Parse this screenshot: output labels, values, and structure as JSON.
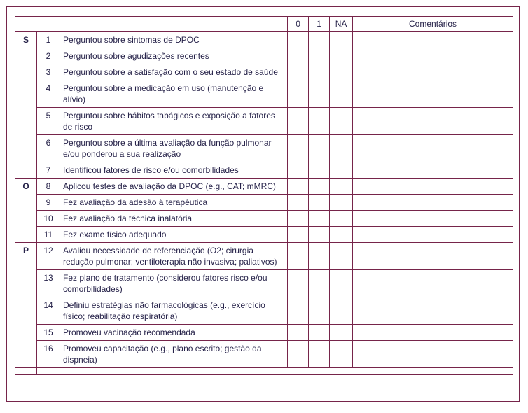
{
  "colors": {
    "border": "#76244a",
    "section_shading": "#e0cdd9",
    "text": "#262249",
    "background": "#ffffff"
  },
  "header": {
    "score0": "0",
    "score1": "1",
    "na": "NA",
    "comments": "Comentários"
  },
  "sections": [
    {
      "letter": "S",
      "shaded": true,
      "rows": [
        {
          "num": "1",
          "text": "Perguntou sobre sintomas de DPOC"
        },
        {
          "num": "2",
          "text": "Perguntou sobre agudizações recentes"
        },
        {
          "num": "3",
          "text": "Perguntou sobre a satisfação com o seu estado de saúde"
        },
        {
          "num": "4",
          "text": "Perguntou sobre a medicação em uso (manutenção e alívio)"
        },
        {
          "num": "5",
          "text": "Perguntou sobre hábitos tabágicos e exposição a fatores de risco"
        },
        {
          "num": "6",
          "text": "Perguntou sobre a última avaliação da função pulmonar e/ou ponderou a sua realização"
        },
        {
          "num": "7",
          "text": "Identificou fatores de risco e/ou comorbilidades"
        }
      ]
    },
    {
      "letter": "O",
      "shaded": false,
      "rows": [
        {
          "num": "8",
          "text": "Aplicou testes de avaliação da DPOC (e.g., CAT; mMRC)"
        },
        {
          "num": "9",
          "text": "Fez avaliação da adesão à terapêutica"
        },
        {
          "num": "10",
          "text": "Fez avaliação da técnica inalatória"
        },
        {
          "num": "11",
          "text": "Fez exame físico adequado"
        }
      ]
    },
    {
      "letter": "P",
      "shaded": true,
      "rows": [
        {
          "num": "12",
          "text": "Avaliou necessidade de referenciação (O2; cirurgia redução pulmonar; ventiloterapia não invasiva; paliativos)"
        },
        {
          "num": "13",
          "text": "Fez plano de tratamento (considerou fatores risco e/ou comorbilidades)"
        },
        {
          "num": "14",
          "text": "Definiu estratégias não farmacológicas (e.g., exercício físico; reabilitação respiratória)"
        },
        {
          "num": "15",
          "text": "Promoveu vacinação recomendada"
        },
        {
          "num": "16",
          "text": "Promoveu capacitação (e.g., plano escrito; gestão da dispneia)"
        }
      ]
    }
  ]
}
